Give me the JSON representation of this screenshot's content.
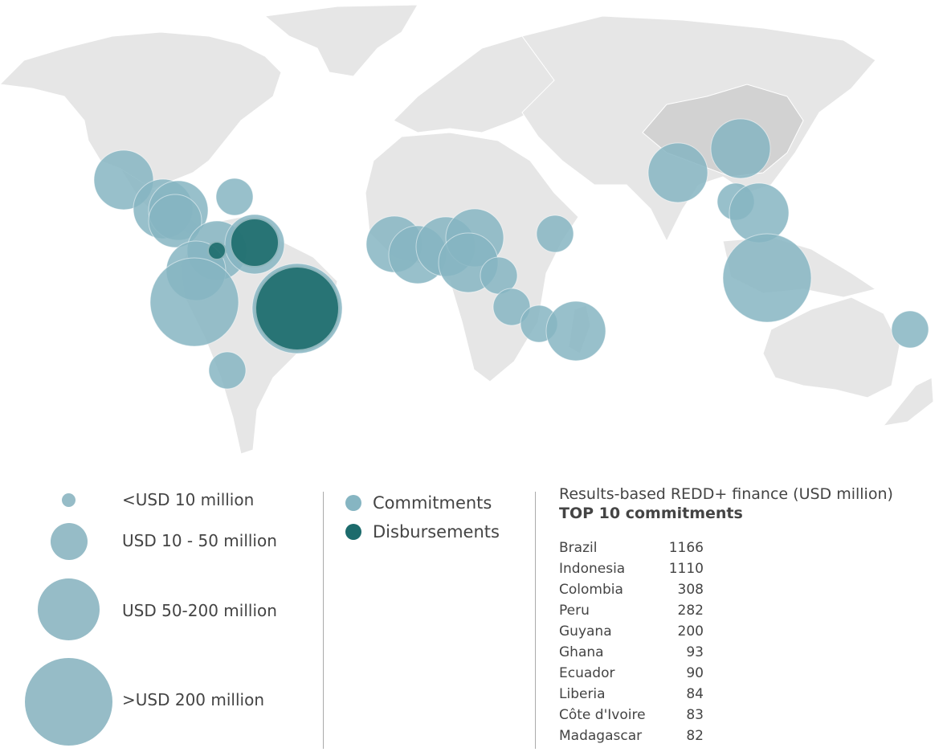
{
  "legend_sizes": [
    {
      "label": "<USD 10 million"
    },
    {
      "label": "USD 10 - 50 million"
    },
    {
      "label": "USD 50-200 million"
    },
    {
      "label": ">USD 200 million"
    }
  ],
  "legend_types": [
    {
      "label": "Commitments",
      "color": "#86b5c2"
    },
    {
      "label": "Disbursements",
      "color": "#1c6b6c"
    }
  ],
  "top10": {
    "title": "Results-based REDD+ finance (USD million)",
    "subtitle": "TOP 10 commitments",
    "rows": [
      {
        "country": "Brazil",
        "value": "1166"
      },
      {
        "country": "Indonesia",
        "value": "1110"
      },
      {
        "country": "Colombia",
        "value": "308"
      },
      {
        "country": "Peru",
        "value": "282"
      },
      {
        "country": "Guyana",
        "value": "200"
      },
      {
        "country": "Ghana",
        "value": "93"
      },
      {
        "country": "Ecuador",
        "value": "90"
      },
      {
        "country": "Liberia",
        "value": "84"
      },
      {
        "country": "Côte d'Ivoire",
        "value": "83"
      },
      {
        "country": "Madagascar",
        "value": "82"
      }
    ]
  }
}
